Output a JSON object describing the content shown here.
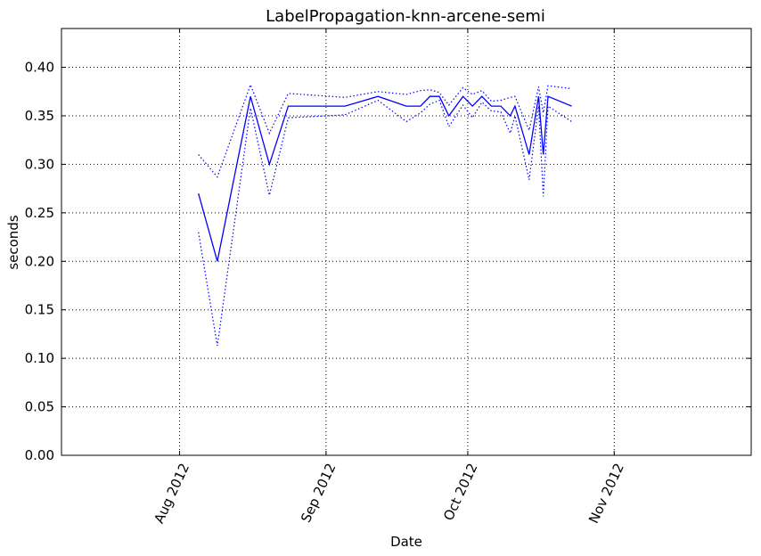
{
  "chart_data": {
    "type": "line",
    "title": "LabelPropagation-knn-arcene-semi",
    "xlabel": "Date",
    "ylabel": "seconds",
    "x_axis": {
      "type": "date",
      "range": [
        "2012-07-07",
        "2012-11-30"
      ],
      "ticks": [
        {
          "date": "2012-08-01",
          "label": "Aug 2012"
        },
        {
          "date": "2012-09-01",
          "label": "Sep 2012"
        },
        {
          "date": "2012-10-01",
          "label": "Oct 2012"
        },
        {
          "date": "2012-11-01",
          "label": "Nov 2012"
        }
      ]
    },
    "y_axis": {
      "range": [
        0.0,
        0.44
      ],
      "ticks": [
        "0.00",
        "0.05",
        "0.10",
        "0.15",
        "0.20",
        "0.25",
        "0.30",
        "0.35",
        "0.40"
      ]
    },
    "grid": true,
    "x": [
      "2012-08-05",
      "2012-08-09",
      "2012-08-16",
      "2012-08-20",
      "2012-08-24",
      "2012-09-05",
      "2012-09-12",
      "2012-09-18",
      "2012-09-21",
      "2012-09-23",
      "2012-09-25",
      "2012-09-27",
      "2012-09-30",
      "2012-10-02",
      "2012-10-04",
      "2012-10-06",
      "2012-10-08",
      "2012-10-10",
      "2012-10-11",
      "2012-10-14",
      "2012-10-16",
      "2012-10-17",
      "2012-10-18",
      "2012-10-23"
    ],
    "series": [
      {
        "style": "solid",
        "values": [
          0.27,
          0.2,
          0.37,
          0.3,
          0.36,
          0.36,
          0.37,
          0.36,
          0.36,
          0.37,
          0.37,
          0.35,
          0.37,
          0.36,
          0.37,
          0.36,
          0.36,
          0.35,
          0.36,
          0.31,
          0.37,
          0.31,
          0.37,
          0.36
        ]
      },
      {
        "style": "dotted",
        "values": [
          0.31,
          0.287,
          0.382,
          0.332,
          0.373,
          0.369,
          0.375,
          0.372,
          0.376,
          0.377,
          0.374,
          0.361,
          0.379,
          0.372,
          0.376,
          0.365,
          0.366,
          0.369,
          0.37,
          0.335,
          0.38,
          0.353,
          0.381,
          0.378
        ]
      },
      {
        "style": "dotted",
        "values": [
          0.23,
          0.113,
          0.358,
          0.268,
          0.348,
          0.351,
          0.366,
          0.344,
          0.353,
          0.362,
          0.366,
          0.339,
          0.361,
          0.348,
          0.364,
          0.355,
          0.354,
          0.332,
          0.35,
          0.284,
          0.36,
          0.267,
          0.36,
          0.344
        ]
      }
    ],
    "colors": {
      "line": "#0000ff",
      "grid": "#000000",
      "axes": "#000000"
    }
  }
}
